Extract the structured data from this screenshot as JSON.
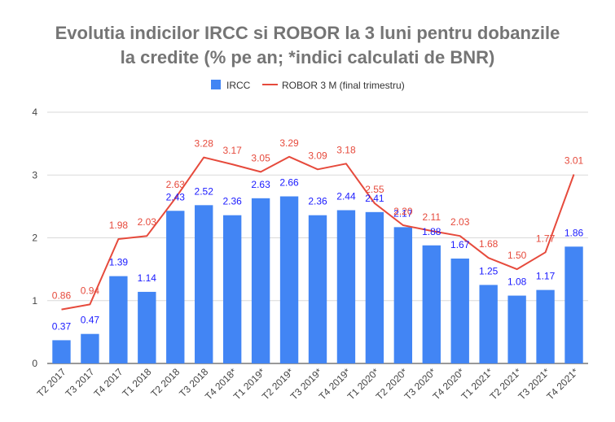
{
  "chart_data": {
    "type": "bar",
    "title_line1": "Evolutia indicilor IRCC si ROBOR la 3 luni pentru dobanzile",
    "title_line2": "la credite (% pe an; *indici calculati de BNR)",
    "categories": [
      "T2 2017",
      "T3 2017",
      "T4 2017",
      "T1 2018",
      "T2 2018",
      "T3 2018",
      "T4 2018*",
      "T1 2019*",
      "T2 2019*",
      "T3 2019*",
      "T4 2019*",
      "T1 2020*",
      "T2 2020*",
      "T3 2020*",
      "T4 2020*",
      "T1 2021*",
      "T2 2021*",
      "T3 2021*",
      "T4 2021*"
    ],
    "series": [
      {
        "name": "IRCC",
        "kind": "bar",
        "color": "#4285f4",
        "values": [
          0.37,
          0.47,
          1.39,
          1.14,
          2.43,
          2.52,
          2.36,
          2.63,
          2.66,
          2.36,
          2.44,
          2.41,
          2.17,
          1.88,
          1.67,
          1.25,
          1.08,
          1.17,
          1.86
        ],
        "labels": [
          "0.37",
          "0.47",
          "1.39",
          "1.14",
          "2.43",
          "2.52",
          "2.36",
          "2.63",
          "2.66",
          "2.36",
          "2.44",
          "2.41",
          "2.17",
          "1.88",
          "1.67",
          "1.25",
          "1.08",
          "1.17",
          "1.86"
        ]
      },
      {
        "name": "ROBOR 3 M (final trimestru)",
        "kind": "line",
        "color": "#e64a3c",
        "values": [
          0.86,
          0.94,
          1.98,
          2.03,
          2.63,
          3.28,
          3.17,
          3.05,
          3.29,
          3.09,
          3.18,
          2.55,
          2.2,
          2.11,
          2.03,
          1.68,
          1.5,
          1.77,
          3.01
        ],
        "labels": [
          "0.86",
          "0.94",
          "1.98",
          "2.03",
          "2.63",
          "3.28",
          "3.17",
          "3.05",
          "3.29",
          "3.09",
          "3.18",
          "2.55",
          "2.20",
          "2.11",
          "2.03",
          "1.68",
          "1.50",
          "1.77",
          "3.01"
        ]
      }
    ],
    "ylim": [
      0,
      4
    ],
    "yticks": [
      "0",
      "1",
      "2",
      "3",
      "4"
    ],
    "grid": true,
    "legend_position": "top"
  }
}
